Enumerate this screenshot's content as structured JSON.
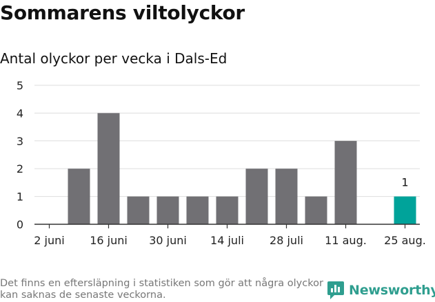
{
  "header": {
    "title": "Sommarens viltolyckor",
    "subtitle": "Antal olyckor per vecka i Dals-Ed"
  },
  "footer": {
    "note": "Det finns en eftersläpning i statistiken som gör att några olyckor kan saknas de senaste veckorna.",
    "brand": "Newsworthy",
    "brand_icon": "newsworthy-logo-icon"
  },
  "colors": {
    "bar": "#717074",
    "highlight": "#00a39a",
    "grid": "#dddddd",
    "axis": "#333333",
    "brand": "#2f9e8f"
  },
  "chart_data": {
    "type": "bar",
    "categories": [
      "2 juni",
      "9 juni",
      "16 juni",
      "23 juni",
      "30 juni",
      "7 juli",
      "14 juli",
      "21 juli",
      "28 juli",
      "4 aug.",
      "11 aug.",
      "18 aug.",
      "25 aug."
    ],
    "values": [
      0,
      2,
      4,
      1,
      1,
      1,
      1,
      2,
      2,
      1,
      3,
      0,
      1
    ],
    "tick_labels": [
      "2 juni",
      "16 juni",
      "30 juni",
      "14 juli",
      "28 juli",
      "11 aug.",
      "25 aug."
    ],
    "y_ticks": [
      0,
      1,
      2,
      3,
      4,
      5
    ],
    "ylim": [
      0,
      5
    ],
    "highlight_index": 12,
    "data_labels": [
      {
        "index": 12,
        "text": "1"
      }
    ],
    "grid": true,
    "xlabel": "",
    "ylabel": ""
  }
}
